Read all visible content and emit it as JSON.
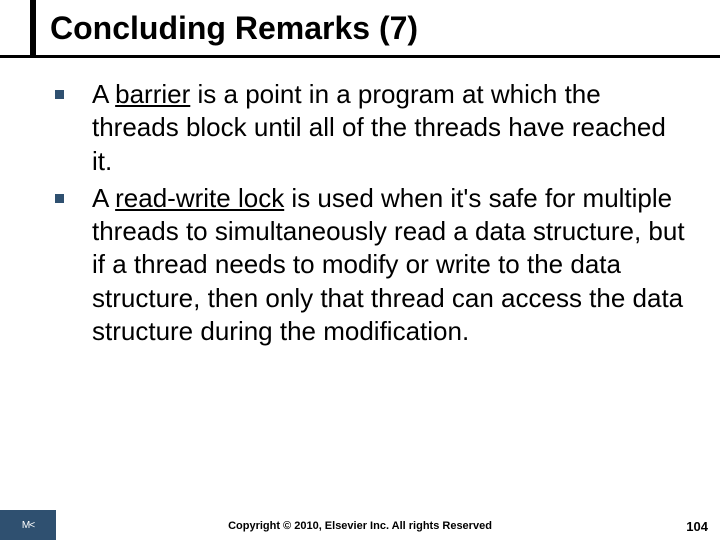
{
  "title": "Concluding Remarks (7)",
  "bullets": [
    {
      "prefix": "A ",
      "term": "barrier",
      "rest": " is a point in a program at which the threads block until all of the threads have reached it."
    },
    {
      "prefix": "A ",
      "term": "read-write lock",
      "rest": " is used when it's safe for multiple threads to simultaneously read a data structure, but if a thread needs to modify or write to the data structure, then only that thread can access the data structure during the modification."
    }
  ],
  "logo_text": "M<",
  "copyright": "Copyright © 2010, Elsevier Inc. All rights Reserved",
  "page_number": "104",
  "colors": {
    "accent": "#2f5070",
    "text": "#000000",
    "background": "#ffffff"
  }
}
